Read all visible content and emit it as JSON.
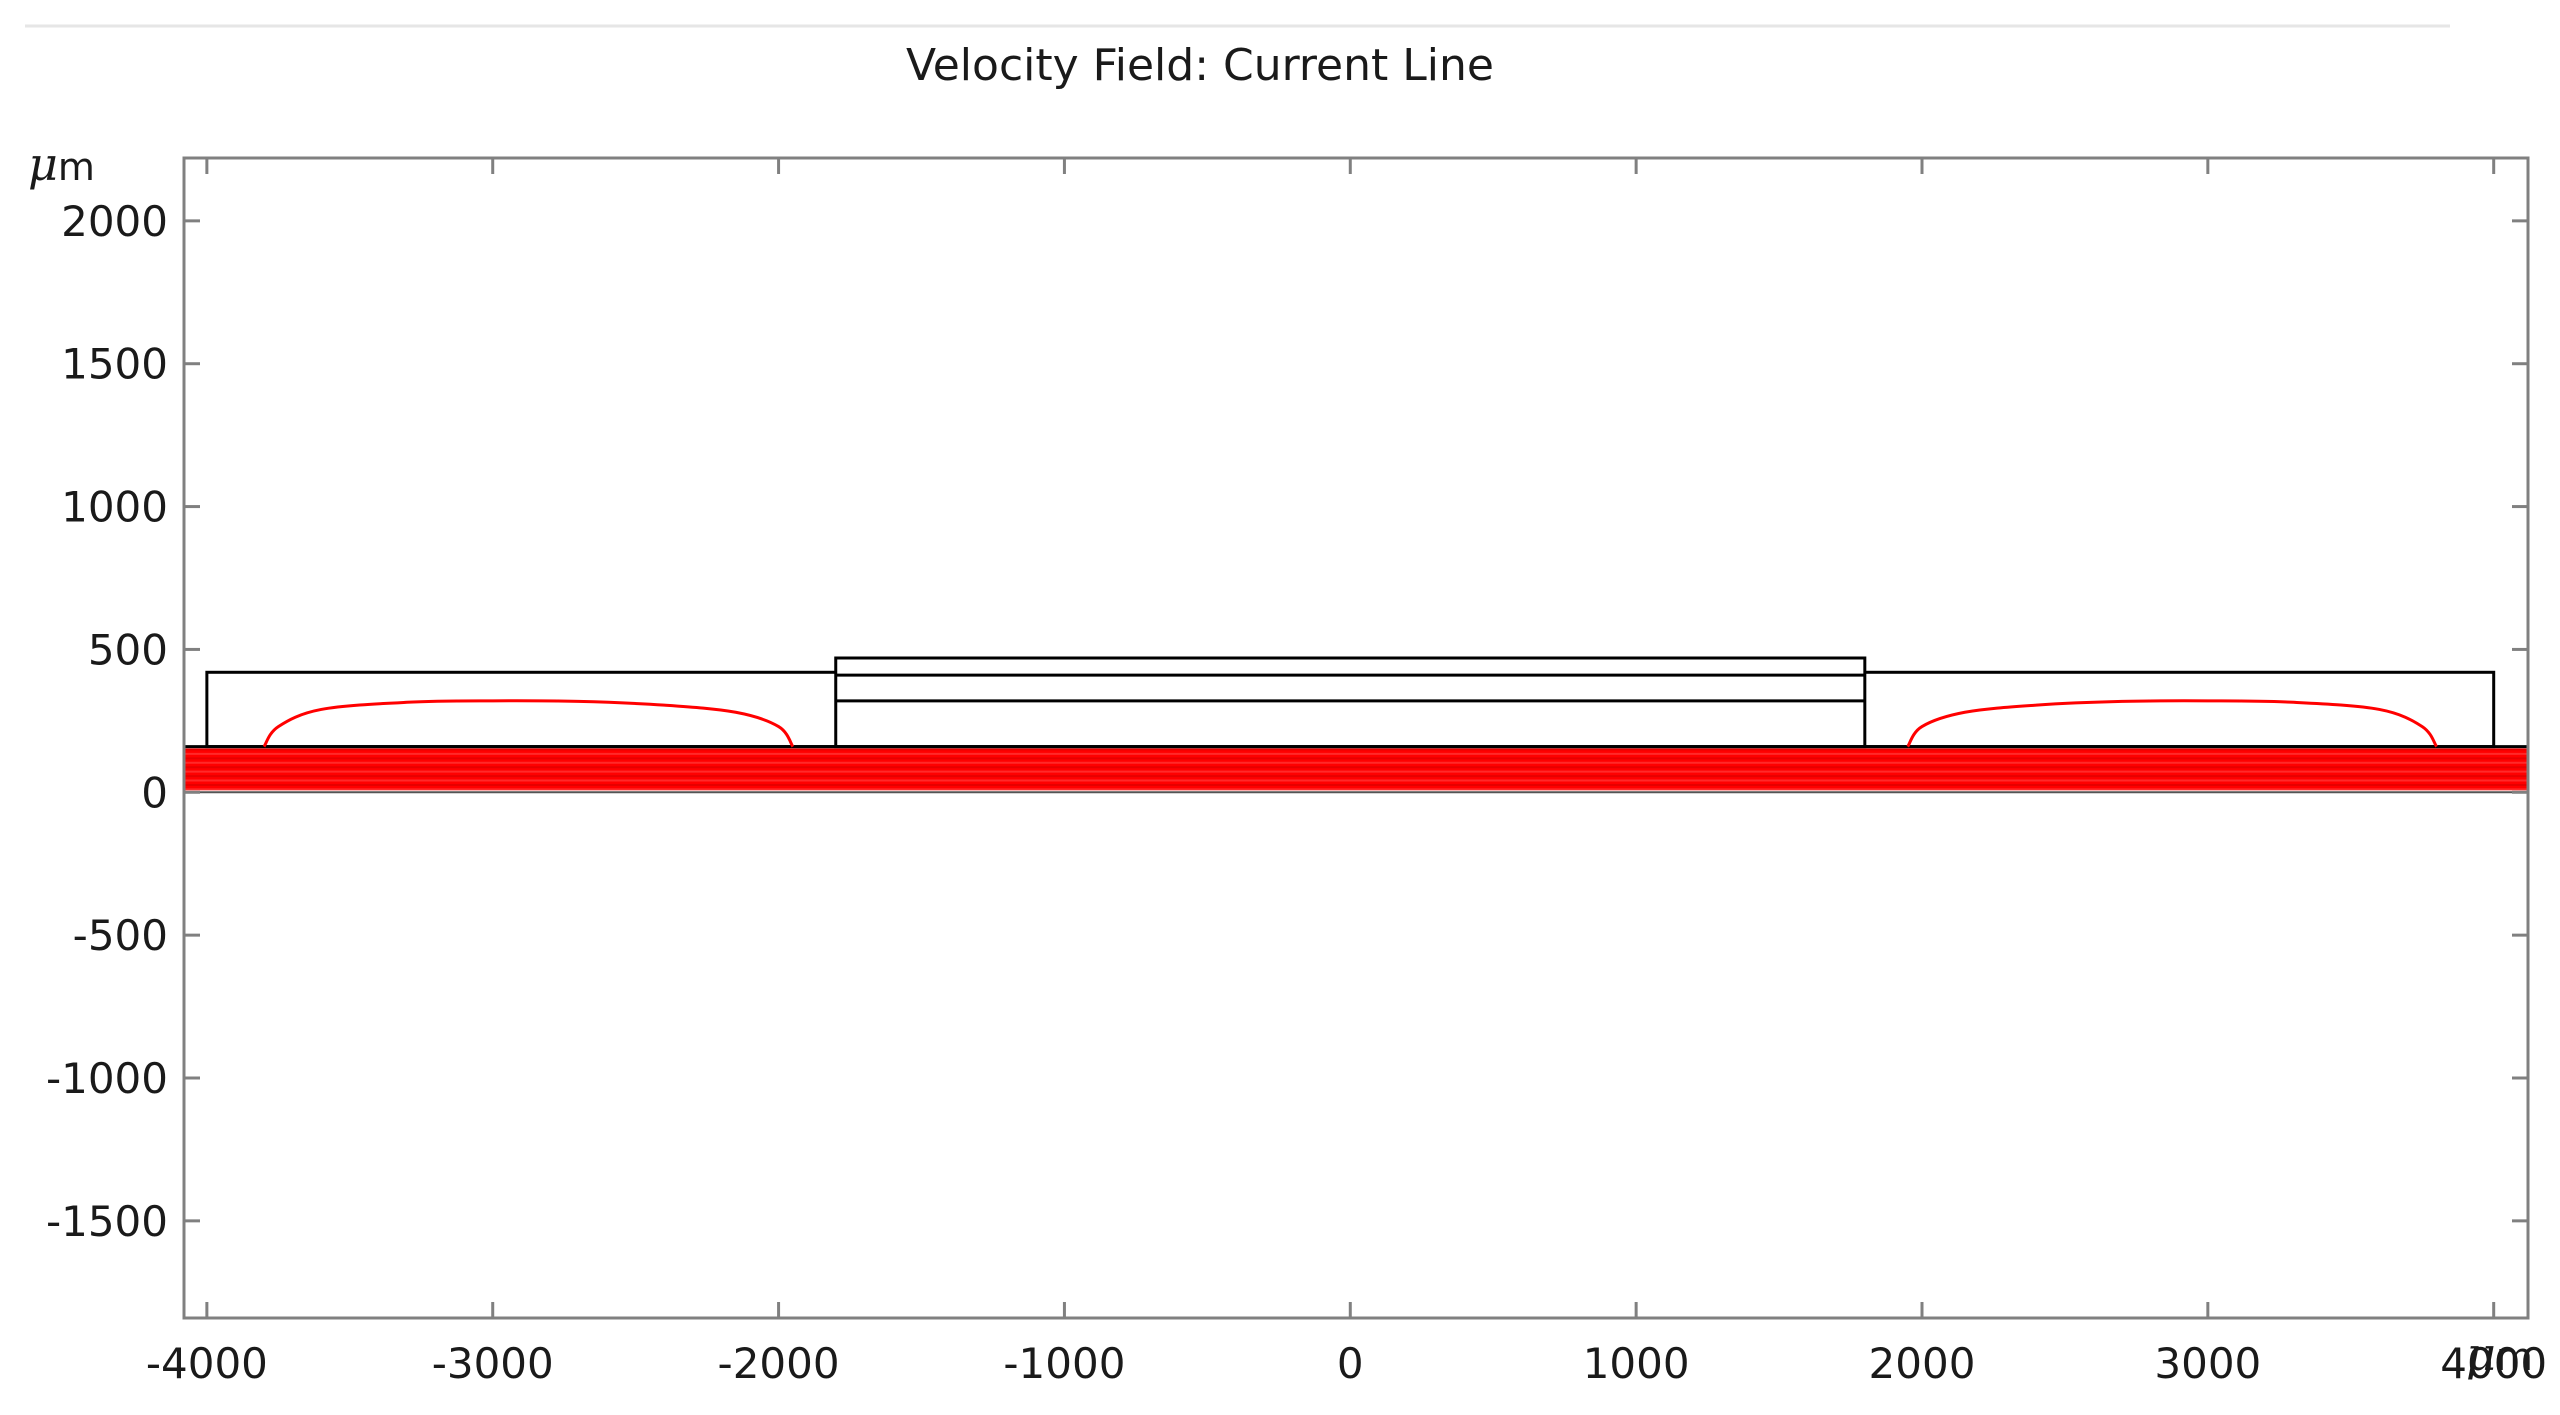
{
  "chart_data": {
    "type": "line",
    "title": "Velocity Field: Current Line",
    "xlabel": "μm",
    "ylabel": "μm",
    "xlim": [
      -4080,
      4120
    ],
    "ylim": [
      -1840,
      2220
    ],
    "xticks": [
      -4000,
      -3000,
      -2000,
      -1000,
      0,
      1000,
      2000,
      3000,
      4000
    ],
    "yticks": [
      -1500,
      -1000,
      -500,
      0,
      500,
      1000,
      1500,
      2000
    ],
    "xtick_labels": [
      "-4000",
      "-3000",
      "-2000",
      "-1000",
      "0",
      "1000",
      "2000",
      "3000",
      "4000"
    ],
    "ytick_labels": [
      "-1500",
      "-1000",
      "-500",
      "0",
      "500",
      "1000",
      "1500",
      "2000"
    ],
    "grid": false,
    "geometry": {
      "outer_box": {
        "x": [
          -4000,
          4000
        ],
        "y": [
          160,
          420
        ]
      },
      "center_box": {
        "x": [
          -1800,
          1800
        ],
        "y": [
          160,
          470
        ]
      },
      "center_lines_y": [
        320,
        410
      ],
      "base_line_y": 160,
      "channel_line_y": 0
    },
    "series": [
      {
        "x": [
          -3800,
          -3750,
          -3600,
          -3300,
          -3000,
          -2700,
          -2400,
          -2150,
          -2000,
          -1950
        ],
        "y": [
          160,
          230,
          290,
          315,
          320,
          318,
          305,
          280,
          230,
          160
        ]
      },
      {
        "x": [
          1950,
          2000,
          2150,
          2400,
          2700,
          3000,
          3300,
          3600,
          3750,
          3800
        ],
        "y": [
          160,
          230,
          280,
          305,
          318,
          320,
          315,
          290,
          230,
          160
        ]
      },
      {
        "x": [
          -4080,
          4120
        ],
        "y_band": [
          10,
          150
        ]
      }
    ],
    "colors": {
      "streamline": "#ff0000",
      "geometry": "#000000",
      "frame": "#808080",
      "text": "#1a1a1a"
    }
  }
}
